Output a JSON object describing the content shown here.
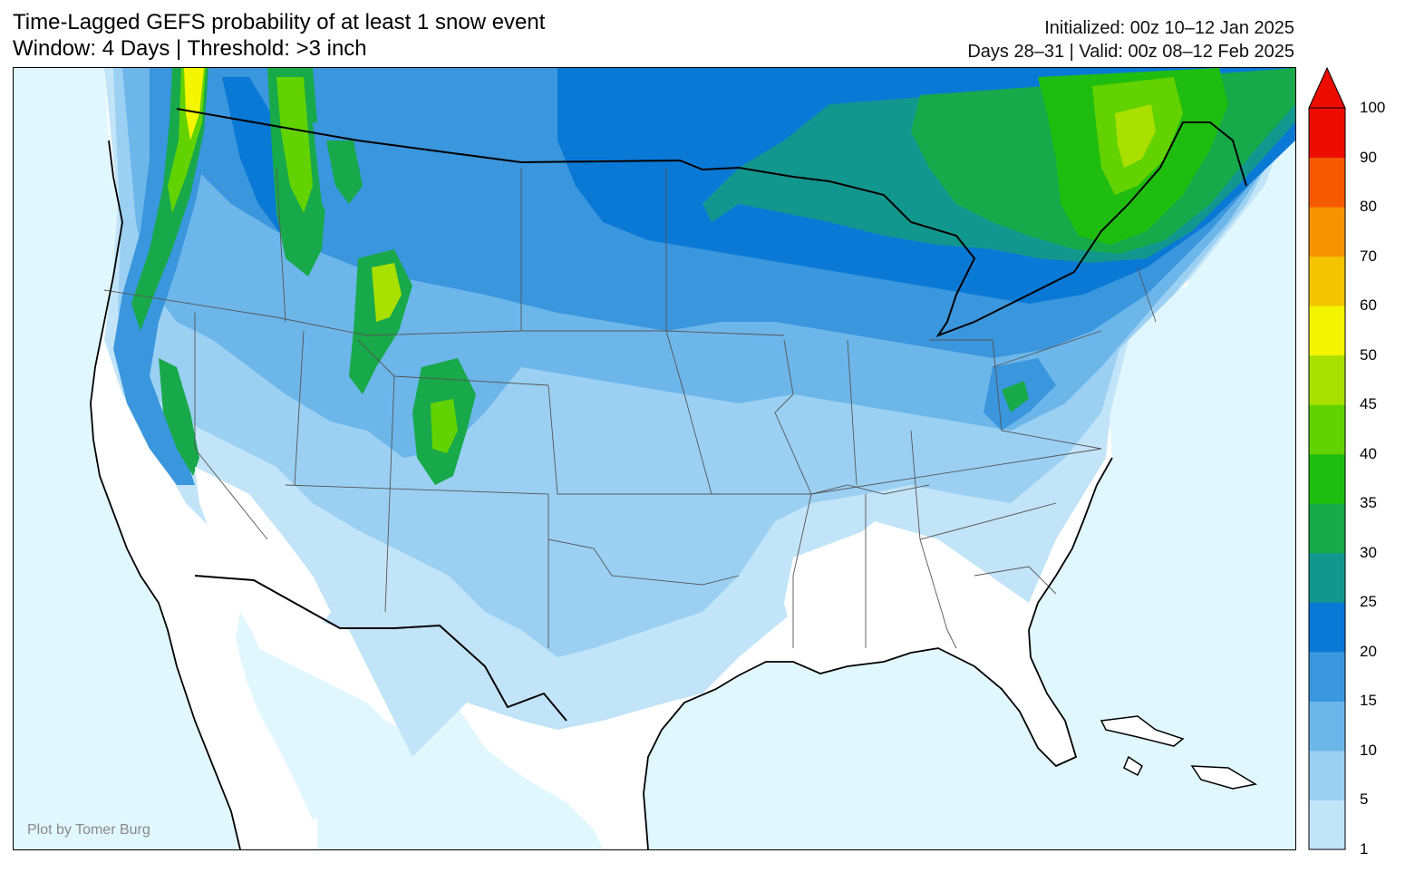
{
  "header": {
    "title_line1": "Time-Lagged GEFS probability of at least 1 snow event",
    "title_line2": "Window: 4 Days | Threshold: >3 inch",
    "init_line": "Initialized: 00z 10–12 Jan 2025",
    "valid_line": "Days 28–31 | Valid: 00z 08–12 Feb 2025"
  },
  "credit": "Plot by Tomer Burg",
  "legend": {
    "levels": [
      "1",
      "5",
      "10",
      "15",
      "20",
      "25",
      "30",
      "35",
      "40",
      "45",
      "50",
      "60",
      "70",
      "80",
      "90",
      "100"
    ],
    "colors": [
      "#c2e4f8",
      "#9bd0f3",
      "#6cb6ea",
      "#3a96dd",
      "#0a79d6",
      "#12978f",
      "#18a94a",
      "#1fbd10",
      "#62d200",
      "#a9e000",
      "#f4f500",
      "#f5c400",
      "#f69400",
      "#f55a00",
      "#ec0c00",
      "#ec0c00"
    ]
  },
  "map": {
    "ocean_color": "#e0f7fd",
    "land_color": "#ffffff",
    "region": "Contiguous United States"
  }
}
